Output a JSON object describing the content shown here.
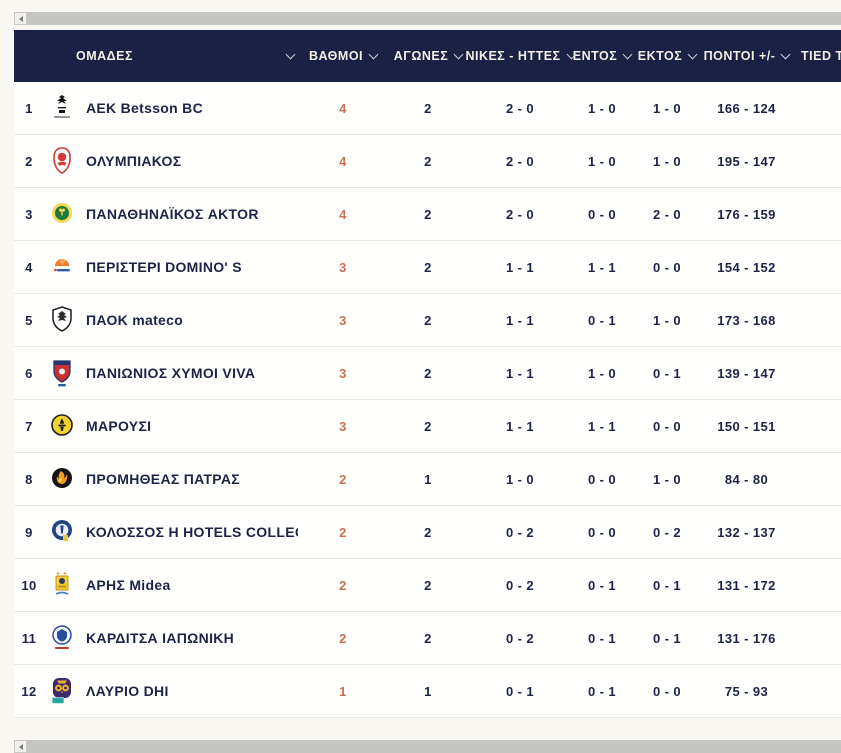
{
  "header": {
    "columns": [
      {
        "id": "teams",
        "label": "ΟΜΑΔΕΣ"
      },
      {
        "id": "points",
        "label": "ΒΑΘΜΟΙ"
      },
      {
        "id": "games",
        "label": "ΑΓΩΝΕΣ"
      },
      {
        "id": "wins_losses",
        "label": "ΝΙΚΕΣ - ΗΤΤΕΣ"
      },
      {
        "id": "home",
        "label": "ΕΝΤΟΣ"
      },
      {
        "id": "away",
        "label": "ΕΚΤΟΣ"
      },
      {
        "id": "points_plus_minus",
        "label": "ΠΟΝΤΟΙ +/-"
      },
      {
        "id": "tied",
        "label": "TIED TE"
      }
    ]
  },
  "standings": [
    {
      "rank": "1",
      "logo": "aek-logo",
      "team": "AEK Betsson BC",
      "points": "4",
      "games": "2",
      "wins_losses": "2 - 0",
      "home": "1 - 0",
      "away": "1 - 0",
      "points_for_against": "166 - 124"
    },
    {
      "rank": "2",
      "logo": "olympiacos-logo",
      "team": "ΟΛΥΜΠΙΑΚΟΣ",
      "points": "4",
      "games": "2",
      "wins_losses": "2 - 0",
      "home": "1 - 0",
      "away": "1 - 0",
      "points_for_against": "195 - 147"
    },
    {
      "rank": "3",
      "logo": "panathinaikos-logo",
      "team": "ΠΑΝΑΘΗΝΑΪΚΟΣ AKTOR",
      "points": "4",
      "games": "2",
      "wins_losses": "2 - 0",
      "home": "0 - 0",
      "away": "2 - 0",
      "points_for_against": "176 - 159"
    },
    {
      "rank": "4",
      "logo": "peristeri-logo",
      "team": "ΠΕΡΙΣΤΕΡΙ DOMINO' S",
      "points": "3",
      "games": "2",
      "wins_losses": "1 - 1",
      "home": "1 - 1",
      "away": "0 - 0",
      "points_for_against": "154 - 152"
    },
    {
      "rank": "5",
      "logo": "paok-logo",
      "team": "ΠΑΟΚ mateco",
      "points": "3",
      "games": "2",
      "wins_losses": "1 - 1",
      "home": "0 - 1",
      "away": "1 - 0",
      "points_for_against": "173 - 168"
    },
    {
      "rank": "6",
      "logo": "panionios-logo",
      "team": "ΠΑΝΙΩΝΙΟΣ ΧΥΜΟΙ VIVA",
      "points": "3",
      "games": "2",
      "wins_losses": "1 - 1",
      "home": "1 - 0",
      "away": "0 - 1",
      "points_for_against": "139 - 147"
    },
    {
      "rank": "7",
      "logo": "maroussi-logo",
      "team": "ΜΑΡΟΥΣΙ",
      "points": "3",
      "games": "2",
      "wins_losses": "1 - 1",
      "home": "1 - 1",
      "away": "0 - 0",
      "points_for_against": "150 - 151"
    },
    {
      "rank": "8",
      "logo": "promitheas-logo",
      "team": "ΠΡΟΜΗΘΕΑΣ ΠΑΤΡΑΣ",
      "points": "2",
      "games": "1",
      "wins_losses": "1 - 0",
      "home": "0 - 0",
      "away": "1 - 0",
      "points_for_against": "84 - 80"
    },
    {
      "rank": "9",
      "logo": "kolossos-logo",
      "team": "ΚΟΛΟΣΣΟΣ H HOTELS COLLECTION",
      "points": "2",
      "games": "2",
      "wins_losses": "0 - 2",
      "home": "0 - 0",
      "away": "0 - 2",
      "points_for_against": "132 - 137"
    },
    {
      "rank": "10",
      "logo": "aris-logo",
      "team": "ΑΡΗΣ Midea",
      "points": "2",
      "games": "2",
      "wins_losses": "0 - 2",
      "home": "0 - 1",
      "away": "0 - 1",
      "points_for_against": "131 - 172"
    },
    {
      "rank": "11",
      "logo": "karditsa-logo",
      "team": "ΚΑΡΔΙΤΣΑ ΙΑΠΩΝΙΚΗ",
      "points": "2",
      "games": "2",
      "wins_losses": "0 - 2",
      "home": "0 - 1",
      "away": "0 - 1",
      "points_for_against": "131 - 176"
    },
    {
      "rank": "12",
      "logo": "lavrio-logo",
      "team": "ΛΑΥΡΙΟ DHI",
      "points": "1",
      "games": "1",
      "wins_losses": "0 - 1",
      "home": "0 - 1",
      "away": "0 - 0",
      "points_for_against": "75 - 93"
    }
  ],
  "colors": {
    "header_bg": "#1a2144",
    "points_accent": "#c8714e",
    "body_text": "#1d2347",
    "row_bg": "#fffffe",
    "page_bg": "#f8f7f2"
  }
}
